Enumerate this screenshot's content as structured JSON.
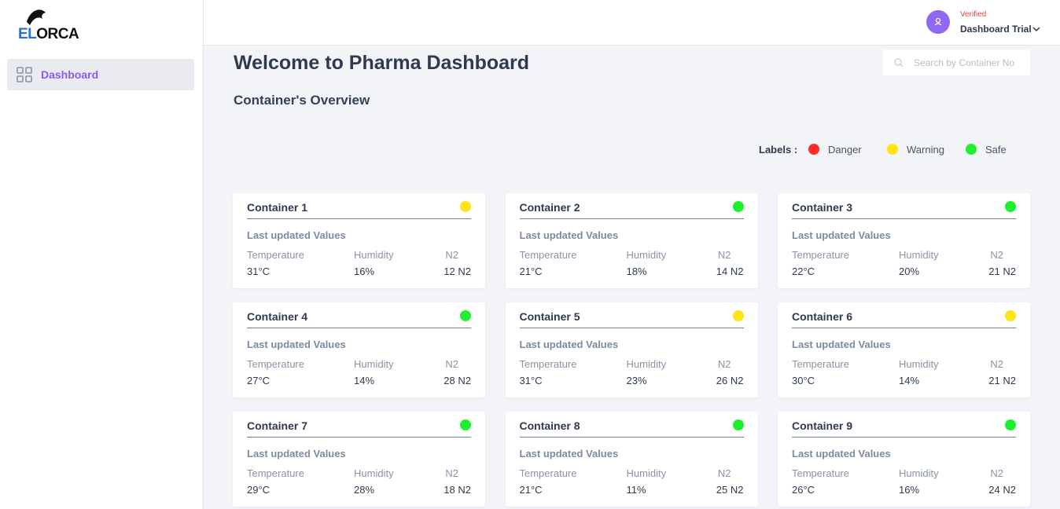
{
  "sidebar": {
    "logo": {
      "part1": "EL",
      "part2": "ORCA"
    },
    "nav": [
      {
        "label": "Dashboard"
      }
    ]
  },
  "header": {
    "user": {
      "status": "Verified",
      "name": "Dashboard Trial"
    }
  },
  "main": {
    "title": "Welcome to Pharma Dashboard",
    "search": {
      "placeholder": "Search by Container No"
    },
    "subtitle": "Container's Overview",
    "legend": {
      "heading": "Labels :",
      "items": [
        {
          "label": "Danger",
          "color": "#ff2a2a"
        },
        {
          "label": "Warning",
          "color": "#ffe414"
        },
        {
          "label": "Safe",
          "color": "#1ef02e"
        }
      ]
    },
    "card_labels": {
      "section": "Last updated Values",
      "columns": [
        "Temperature",
        "Humidity",
        "N2"
      ]
    },
    "containers": [
      {
        "name": "Container 1",
        "status": "Warning",
        "temperature": "31°C",
        "humidity": "16%",
        "n2": "12 N2"
      },
      {
        "name": "Container 2",
        "status": "Safe",
        "temperature": "21°C",
        "humidity": "18%",
        "n2": "14 N2"
      },
      {
        "name": "Container 3",
        "status": "Safe",
        "temperature": "22°C",
        "humidity": "20%",
        "n2": "21 N2"
      },
      {
        "name": "Container 4",
        "status": "Safe",
        "temperature": "27°C",
        "humidity": "14%",
        "n2": "28 N2"
      },
      {
        "name": "Container 5",
        "status": "Warning",
        "temperature": "31°C",
        "humidity": "23%",
        "n2": "26 N2"
      },
      {
        "name": "Container 6",
        "status": "Warning",
        "temperature": "30°C",
        "humidity": "14%",
        "n2": "21 N2"
      },
      {
        "name": "Container 7",
        "status": "Safe",
        "temperature": "29°C",
        "humidity": "28%",
        "n2": "18 N2"
      },
      {
        "name": "Container 8",
        "status": "Safe",
        "temperature": "21°C",
        "humidity": "11%",
        "n2": "25 N2"
      },
      {
        "name": "Container 9",
        "status": "Safe",
        "temperature": "26°C",
        "humidity": "16%",
        "n2": "24 N2"
      }
    ]
  }
}
